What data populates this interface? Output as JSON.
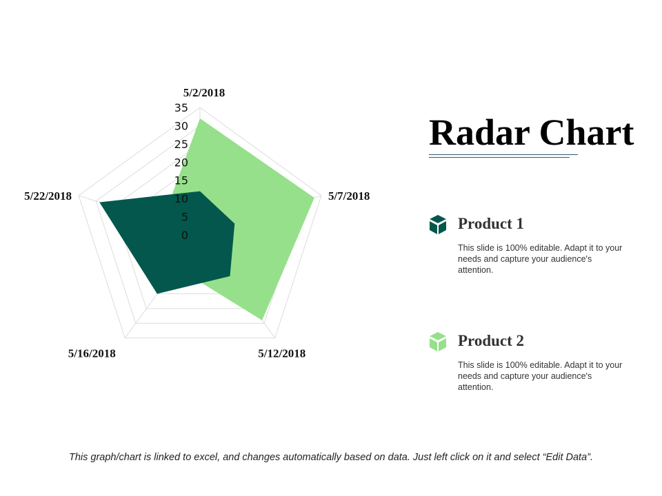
{
  "title": "Radar Chart",
  "legend": [
    {
      "name": "Product 1",
      "desc": "This slide is 100% editable. Adapt it to your needs and capture your audience's attention.",
      "color": "#04574c",
      "icon": "box-icon"
    },
    {
      "name": "Product 2",
      "desc": "This slide is 100% editable. Adapt it to your needs and capture your audience's attention.",
      "color": "#96e08b",
      "icon": "box-icon"
    }
  ],
  "footer": "This graph/chart is linked to excel, and changes automatically based on data. Just left click on it and select “Edit Data”.",
  "chart_data": {
    "type": "radar",
    "categories": [
      "5/2/2018",
      "5/7/2018",
      "5/12/2018",
      "5/16/2018",
      "5/22/2018"
    ],
    "rlim": [
      0,
      35
    ],
    "ticks": [
      0,
      5,
      10,
      15,
      20,
      25,
      30,
      35
    ],
    "series": [
      {
        "name": "Product 2",
        "color": "#96e08b",
        "values": [
          32,
          33,
          29,
          11,
          11
        ]
      },
      {
        "name": "Product 1",
        "color": "#04574c",
        "values": [
          12,
          10,
          14,
          20,
          29
        ]
      }
    ],
    "grid": true
  }
}
